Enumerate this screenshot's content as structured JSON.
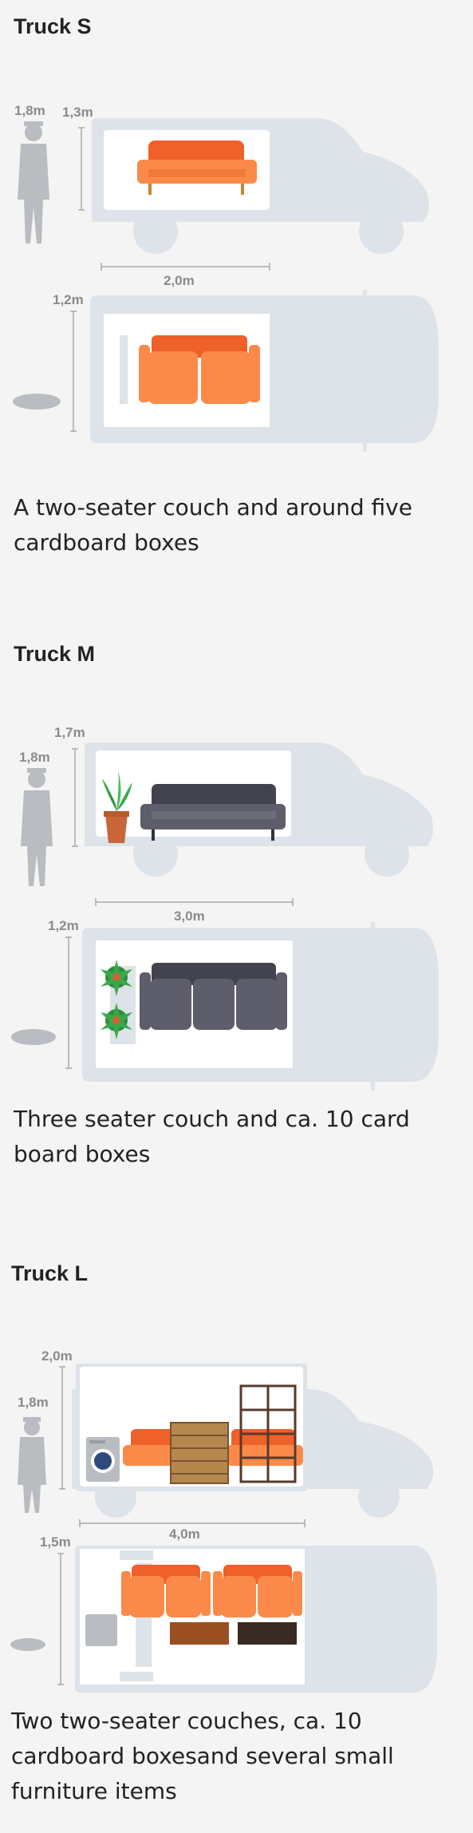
{
  "trucks": [
    {
      "title": "Truck S",
      "labels": {
        "person_height": "1,8m",
        "cargo_height": "1,3m",
        "cargo_length": "2,0m",
        "cargo_width": "1,2m"
      },
      "description": "A two-seater couch and around five cardboard boxes"
    },
    {
      "title": "Truck M",
      "labels": {
        "person_height": "1,8m",
        "cargo_height": "1,7m",
        "cargo_length": "3,0m",
        "cargo_width": "1,2m"
      },
      "description": "Three seater couch and ca. 10 card board boxes"
    },
    {
      "title": "Truck L",
      "labels": {
        "person_height": "1,8m",
        "cargo_height": "2,0m",
        "cargo_length": "4,0m",
        "cargo_width": "1,5m"
      },
      "description": "Two two-seater couches, ca. 10 cardboard boxesand several small furniture items"
    }
  ],
  "colors": {
    "background": "#f4f4f4",
    "truck_body": "#dde3e8",
    "cargo_area": "#ffffff",
    "person": "#b9bcc0",
    "orange_couch": "#f0602a",
    "orange_couch_light": "#fb8a4a",
    "dark_couch": "#43434f",
    "plant": "#3aa84a",
    "pot": "#c8663a",
    "dresser": "#b5874c",
    "shelf": "#5a3a2c"
  }
}
